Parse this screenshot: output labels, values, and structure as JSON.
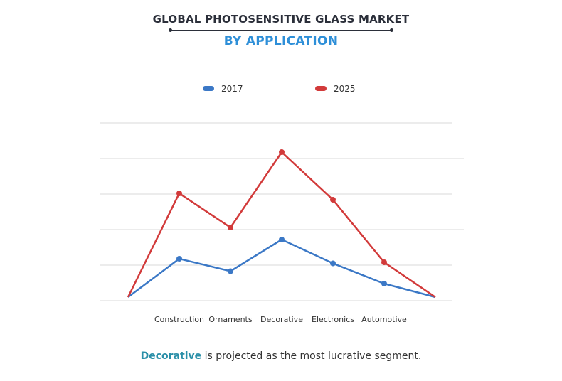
{
  "header": {
    "title": "GLOBAL PHOTOSENSITIVE GLASS MARKET",
    "subtitle": "BY APPLICATION"
  },
  "footer": {
    "highlight": "Decorative",
    "text": " is projected as the most lucrative segment."
  },
  "colors": {
    "series_2017": "#3b78c6",
    "series_2025": "#d23a3a",
    "grid": "#d9d9d9",
    "highlight": "#2a8fa8"
  },
  "chart_data": {
    "type": "line",
    "title": "GLOBAL PHOTOSENSITIVE GLASS MARKET",
    "subtitle": "BY APPLICATION",
    "xlabel": "",
    "ylabel": "",
    "legend_position": "top-center",
    "grid": true,
    "ylim": [
      0,
      5
    ],
    "categories": [
      "",
      "Construction",
      "Ornaments",
      "Decorative",
      "Electronics",
      "Automotive",
      ""
    ],
    "series": [
      {
        "name": "2017",
        "values": [
          0.1,
          1.18,
          0.83,
          1.72,
          1.05,
          0.48,
          0.1
        ]
      },
      {
        "name": "2025",
        "values": [
          0.1,
          3.02,
          2.06,
          4.18,
          2.84,
          1.08,
          0.1
        ]
      }
    ]
  }
}
